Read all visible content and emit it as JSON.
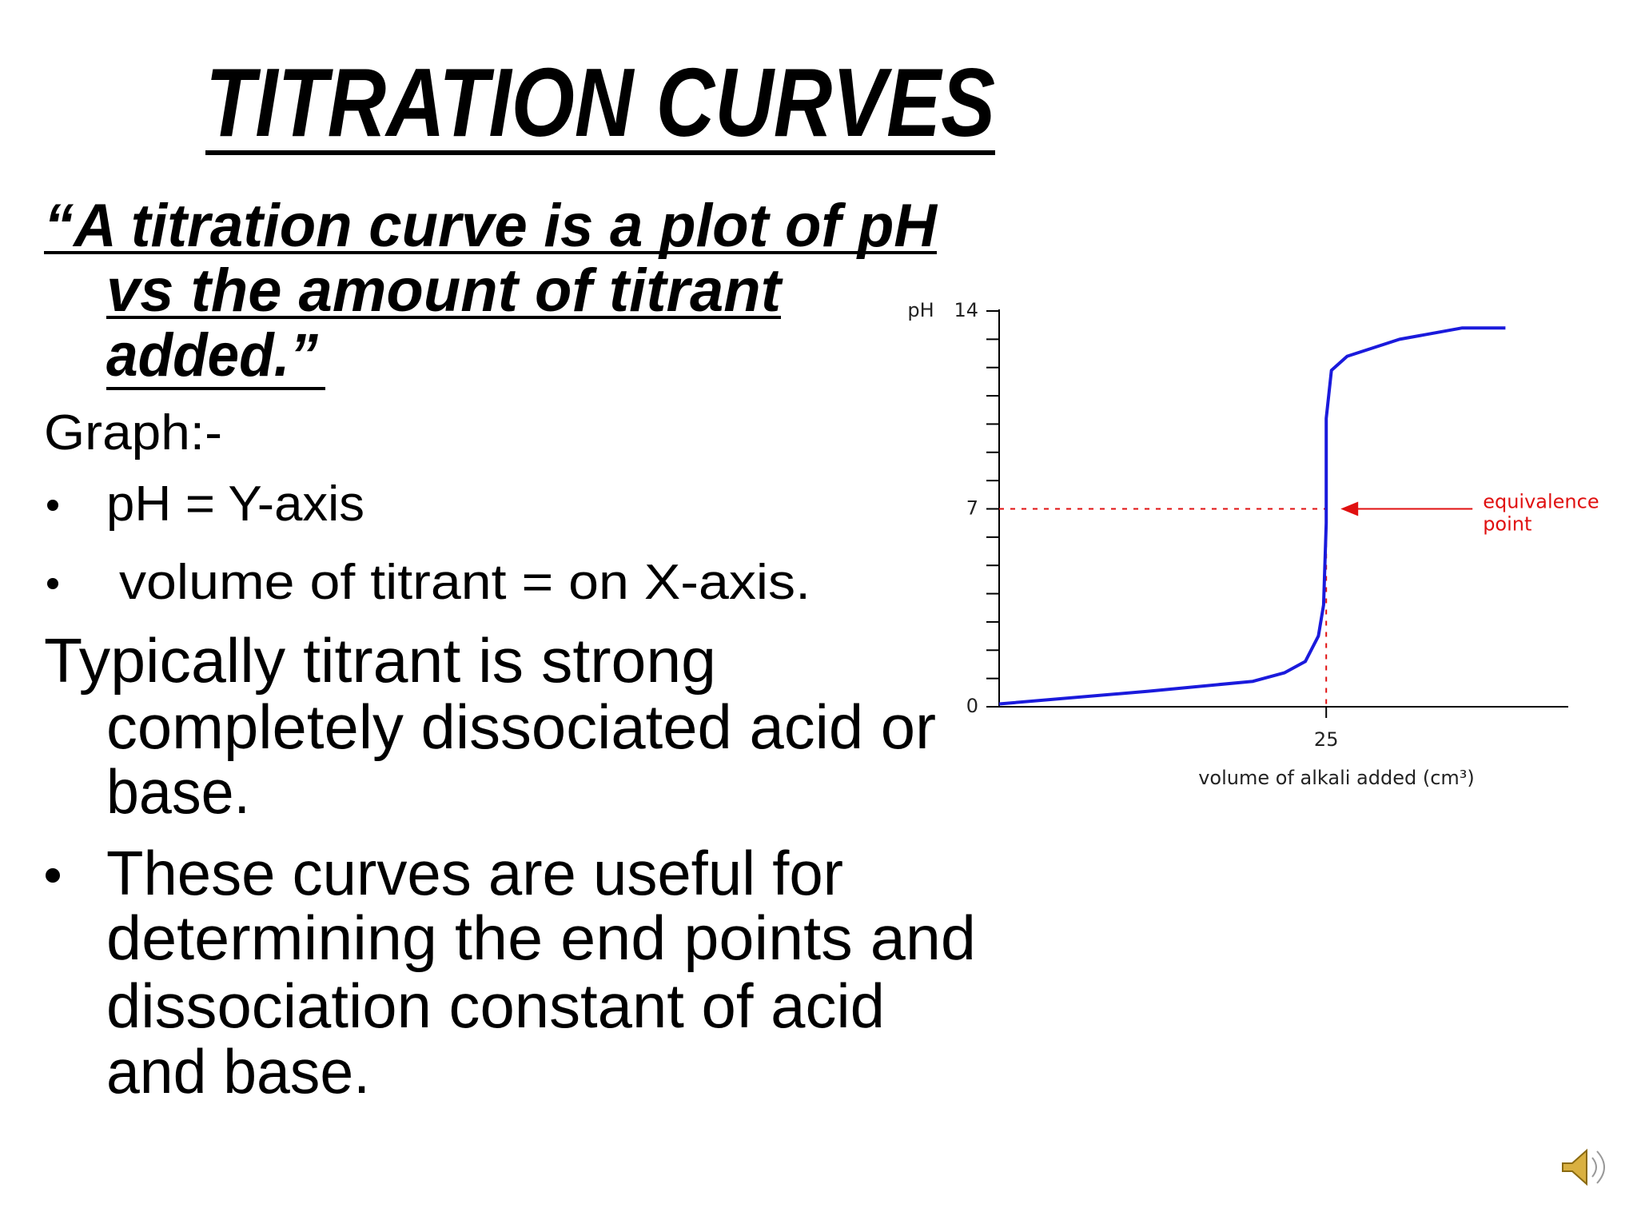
{
  "title": "TITRATION CURVES",
  "definition": [
    "“A titration curve is a plot of pH",
    "vs the amount of titrant",
    "added.”"
  ],
  "graph_heading": "Graph:-",
  "bullets": [
    "pH = Y-axis",
    "volume of titrant = on X-axis."
  ],
  "paragraph": [
    "Typically titrant is strong",
    "completely dissociated acid or",
    "base."
  ],
  "bullet_paragraph": [
    "These curves are useful for",
    "determining the end points and",
    "dissociation constant of acid",
    "and base."
  ],
  "chart_data": {
    "type": "line",
    "y_label": "pH",
    "x_label": "volume of alkali added (cm³)",
    "xlim": [
      0,
      43.5
    ],
    "ylim": [
      0,
      14
    ],
    "xticks": [
      25
    ],
    "yticks": [
      0,
      7,
      14
    ],
    "yminorticks": [
      1,
      2,
      3,
      4,
      5,
      6,
      8,
      9,
      10,
      11,
      12,
      13
    ],
    "series": [
      {
        "color": "#1a1adc",
        "x": [
          0,
          11.4,
          19.4,
          21.8,
          23.4,
          24.4,
          24.8,
          25,
          25,
          25.4,
          26.6,
          30.6,
          35.4,
          38.7
        ],
        "values": [
          0.1,
          0.55,
          0.9,
          1.2,
          1.6,
          2.5,
          3.6,
          6.5,
          10.2,
          11.9,
          12.4,
          13.0,
          13.4,
          13.4
        ]
      }
    ],
    "equivalence_point": {
      "x": 25,
      "y": 7,
      "color": "#e01010",
      "label": [
        "equivalence",
        "point"
      ]
    }
  }
}
